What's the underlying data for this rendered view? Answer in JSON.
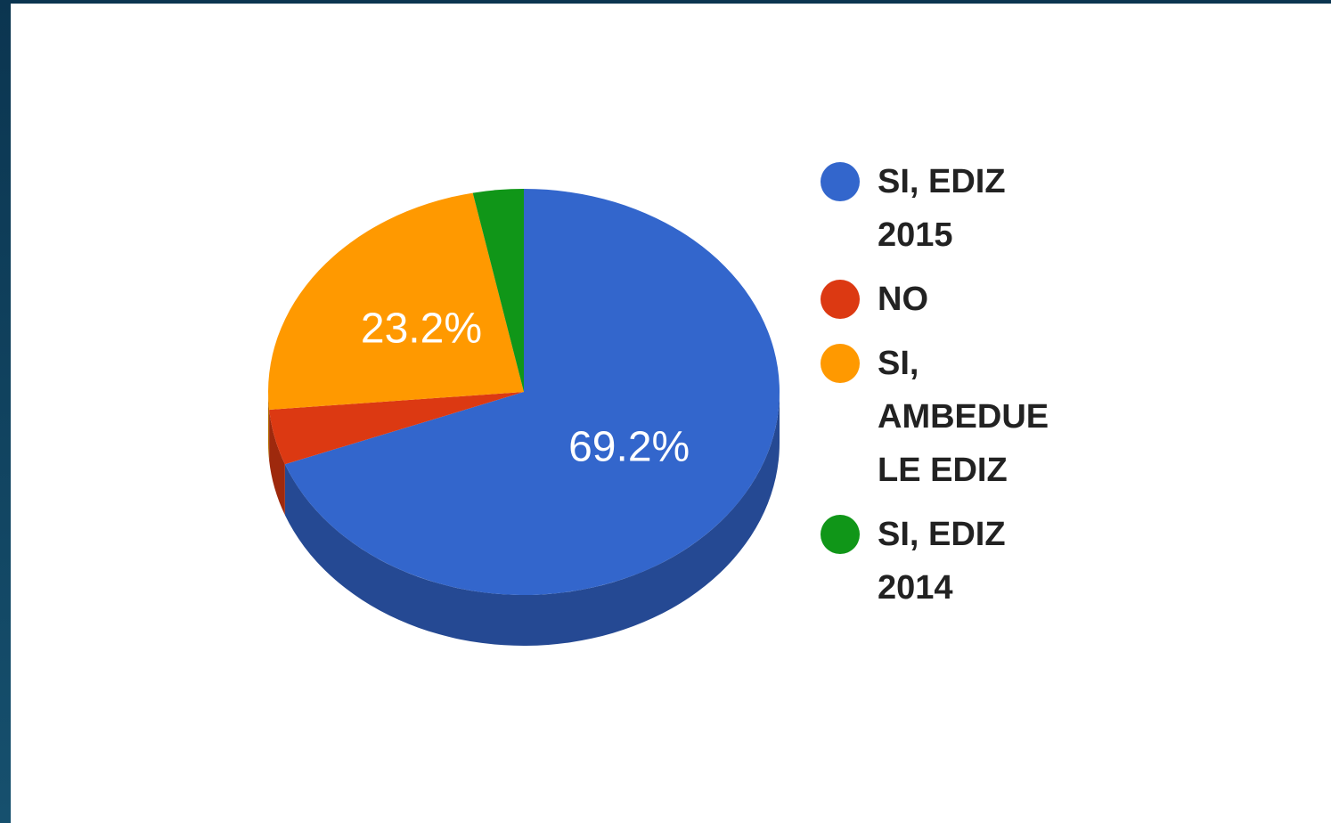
{
  "chart_data": {
    "type": "pie",
    "categories": [
      "SI, EDIZ 2015",
      "NO",
      "SI, AMBEDUE LE EDIZ",
      "SI, EDIZ 2014"
    ],
    "values": [
      69.2,
      4.4,
      23.2,
      3.2
    ],
    "value_labels": [
      "69.2%",
      null,
      "23.2%",
      null
    ],
    "colors": [
      "#3366cc",
      "#dc3912",
      "#ff9900",
      "#109618"
    ],
    "legend": "right"
  }
}
